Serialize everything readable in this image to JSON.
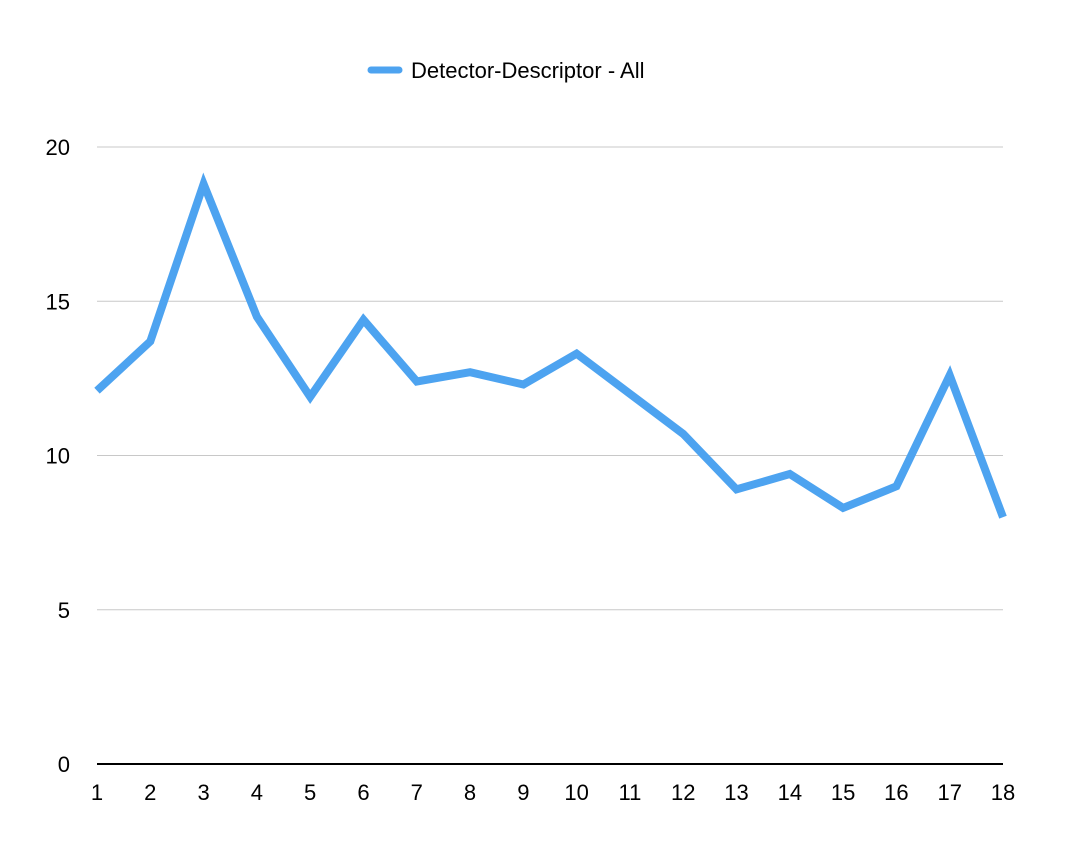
{
  "chart_data": {
    "type": "line",
    "title": "",
    "xlabel": "",
    "ylabel": "",
    "categories": [
      "1",
      "2",
      "3",
      "4",
      "5",
      "6",
      "7",
      "8",
      "9",
      "10",
      "11",
      "12",
      "13",
      "14",
      "15",
      "16",
      "17",
      "18"
    ],
    "series": [
      {
        "name": "Detector-Descriptor - All",
        "color": "#4DA3F0",
        "values": [
          12.1,
          13.7,
          18.8,
          14.5,
          11.9,
          14.4,
          12.4,
          12.7,
          12.3,
          13.3,
          12.0,
          10.7,
          8.9,
          9.4,
          8.3,
          9.0,
          12.6,
          8.0
        ]
      }
    ],
    "ylim": [
      0,
      20
    ],
    "yticks": [
      0,
      5,
      10,
      15,
      20
    ],
    "grid": true,
    "legend_position": "top-center",
    "colors": {
      "gridline": "#c8c8c8",
      "axis": "#000000"
    }
  }
}
